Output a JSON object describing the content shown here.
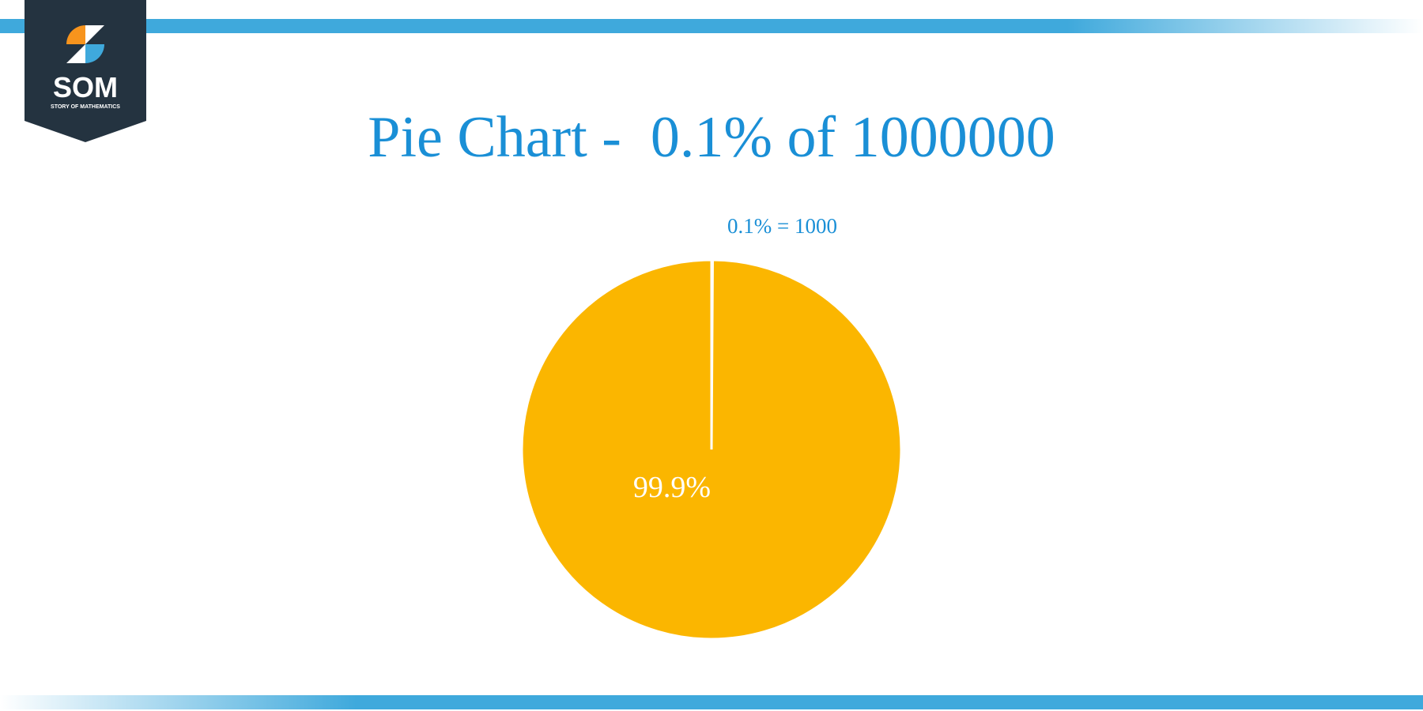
{
  "logo": {
    "name": "SOM",
    "tagline": "STORY OF MATHEMATICS"
  },
  "chart_data": {
    "type": "pie",
    "title": "Pie Chart -  0.1% of 1000000",
    "categories": null,
    "values": [
      0.1,
      99.9
    ],
    "value_labels": [
      "0.1% = 1000",
      "99.9%"
    ],
    "colors": [
      "#fbb600",
      "#fbb600"
    ]
  }
}
